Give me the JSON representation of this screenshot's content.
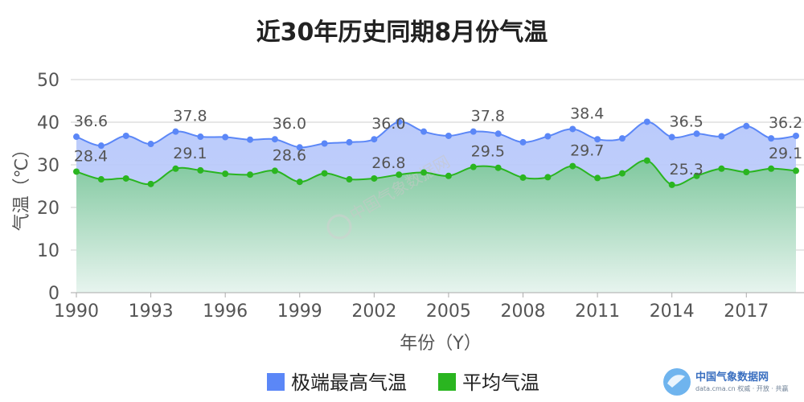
{
  "chart_data": {
    "type": "area",
    "title": "近30年历史同期8月份气温",
    "xlabel": "年份（Y）",
    "ylabel": "气温（℃）",
    "ylim": [
      0,
      50
    ],
    "yticks": [
      0,
      10,
      20,
      30,
      40,
      50
    ],
    "xticks": [
      1990,
      1993,
      1996,
      1999,
      2002,
      2005,
      2008,
      2011,
      2014,
      2017
    ],
    "x": [
      1990,
      1991,
      1992,
      1993,
      1994,
      1995,
      1996,
      1997,
      1998,
      1999,
      2000,
      2001,
      2002,
      2003,
      2004,
      2005,
      2006,
      2007,
      2008,
      2009,
      2010,
      2011,
      2012,
      2013,
      2014,
      2015,
      2016,
      2017,
      2018,
      2019
    ],
    "grid": true,
    "legend_position": "bottom-center",
    "series": [
      {
        "name": "极端最高气温",
        "color": "#5b87f7",
        "values": [
          36.6,
          34.5,
          36.8,
          34.9,
          37.8,
          36.6,
          36.5,
          35.9,
          36.0,
          34.1,
          35.0,
          35.3,
          36.0,
          40.1,
          37.8,
          36.8,
          37.8,
          37.3,
          35.3,
          36.7,
          38.4,
          36.0,
          36.2,
          40.1,
          36.5,
          37.3,
          36.7,
          39.1,
          36.2,
          36.8
        ],
        "labels": [
          {
            "year": 1990,
            "value": "36.6"
          },
          {
            "year": 1994,
            "value": "37.8"
          },
          {
            "year": 1998,
            "value": "36.0"
          },
          {
            "year": 2002,
            "value": "36.0"
          },
          {
            "year": 2006,
            "value": "37.8"
          },
          {
            "year": 2010,
            "value": "38.4"
          },
          {
            "year": 2014,
            "value": "36.5"
          },
          {
            "year": 2018,
            "value": "36.2"
          }
        ]
      },
      {
        "name": "平均气温",
        "color": "#2ab520",
        "values": [
          28.4,
          26.6,
          26.8,
          25.5,
          29.1,
          28.7,
          27.9,
          27.7,
          28.6,
          26.0,
          28.0,
          26.6,
          26.8,
          27.7,
          28.2,
          27.4,
          29.5,
          29.3,
          27.0,
          27.1,
          29.7,
          26.9,
          28.0,
          31.0,
          25.3,
          27.4,
          29.1,
          28.3,
          29.1,
          28.6
        ],
        "labels": [
          {
            "year": 1990,
            "value": "28.4"
          },
          {
            "year": 1994,
            "value": "29.1"
          },
          {
            "year": 1998,
            "value": "28.6"
          },
          {
            "year": 2002,
            "value": "26.8"
          },
          {
            "year": 2006,
            "value": "29.5"
          },
          {
            "year": 2010,
            "value": "29.7"
          },
          {
            "year": 2014,
            "value": "25.3"
          },
          {
            "year": 2018,
            "value": "29.1"
          }
        ]
      }
    ]
  },
  "watermark": {
    "text": "中国气象数据网"
  },
  "brand": {
    "name": "中国气象数据网",
    "url": "data.cma.cn  权威 · 开放 · 共赢"
  }
}
